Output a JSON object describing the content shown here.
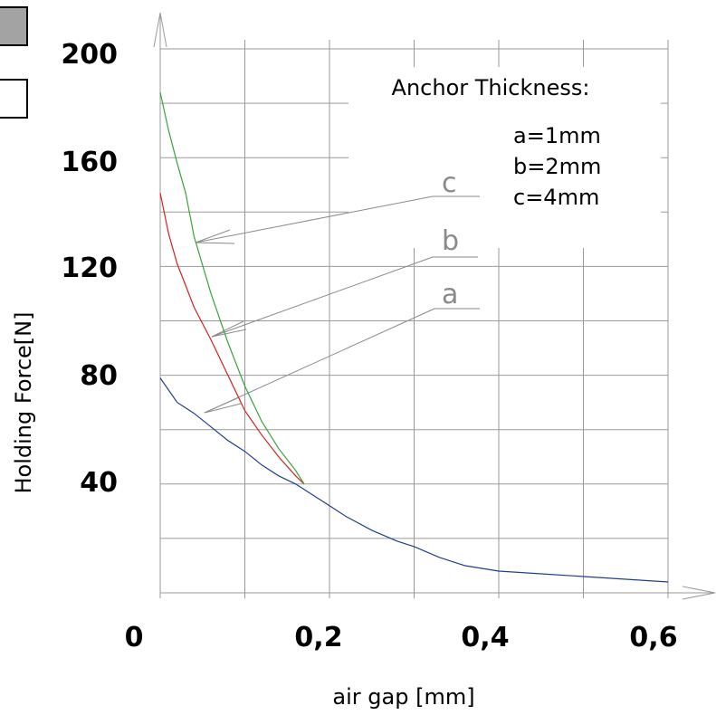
{
  "chart_data": {
    "type": "line",
    "xlabel": "air gap [mm]",
    "ylabel": "Holding Force[N]",
    "xlim": [
      0,
      0.6
    ],
    "ylim": [
      0,
      200
    ],
    "xticks": [
      "0",
      "0,2",
      "0,4",
      "0,6"
    ],
    "yticks": [
      "40",
      "80",
      "120",
      "160",
      "200"
    ],
    "grid": true,
    "legend": {
      "title": "Anchor Thickness:",
      "entries": [
        "a=1mm",
        "b=2mm",
        "c=4mm"
      ]
    },
    "series": [
      {
        "name": "a",
        "color": "#1f3f8f",
        "x": [
          0,
          0.02,
          0.04,
          0.06,
          0.08,
          0.1,
          0.12,
          0.14,
          0.16,
          0.18,
          0.2,
          0.22,
          0.25,
          0.28,
          0.3,
          0.33,
          0.36,
          0.4,
          0.45,
          0.5,
          0.55,
          0.6
        ],
        "y": [
          79,
          70,
          66,
          61,
          56,
          52,
          47,
          43,
          40,
          36,
          32,
          28,
          23,
          19,
          17,
          13,
          10,
          8,
          7,
          6,
          5,
          4
        ]
      },
      {
        "name": "b",
        "color": "#d62020",
        "x": [
          0,
          0.01,
          0.02,
          0.03,
          0.04,
          0.06,
          0.08,
          0.1,
          0.12,
          0.14,
          0.16,
          0.17
        ],
        "y": [
          147,
          132,
          121,
          113,
          105,
          93,
          80,
          67,
          58,
          50,
          43,
          40
        ]
      },
      {
        "name": "c",
        "color": "#3aa33a",
        "x": [
          0,
          0.01,
          0.02,
          0.03,
          0.04,
          0.06,
          0.08,
          0.1,
          0.12,
          0.14,
          0.16,
          0.17
        ],
        "y": [
          184,
          170,
          158,
          147,
          131,
          110,
          92,
          76,
          63,
          53,
          45,
          40
        ]
      }
    ],
    "annotations": [
      "c",
      "b",
      "a"
    ]
  }
}
